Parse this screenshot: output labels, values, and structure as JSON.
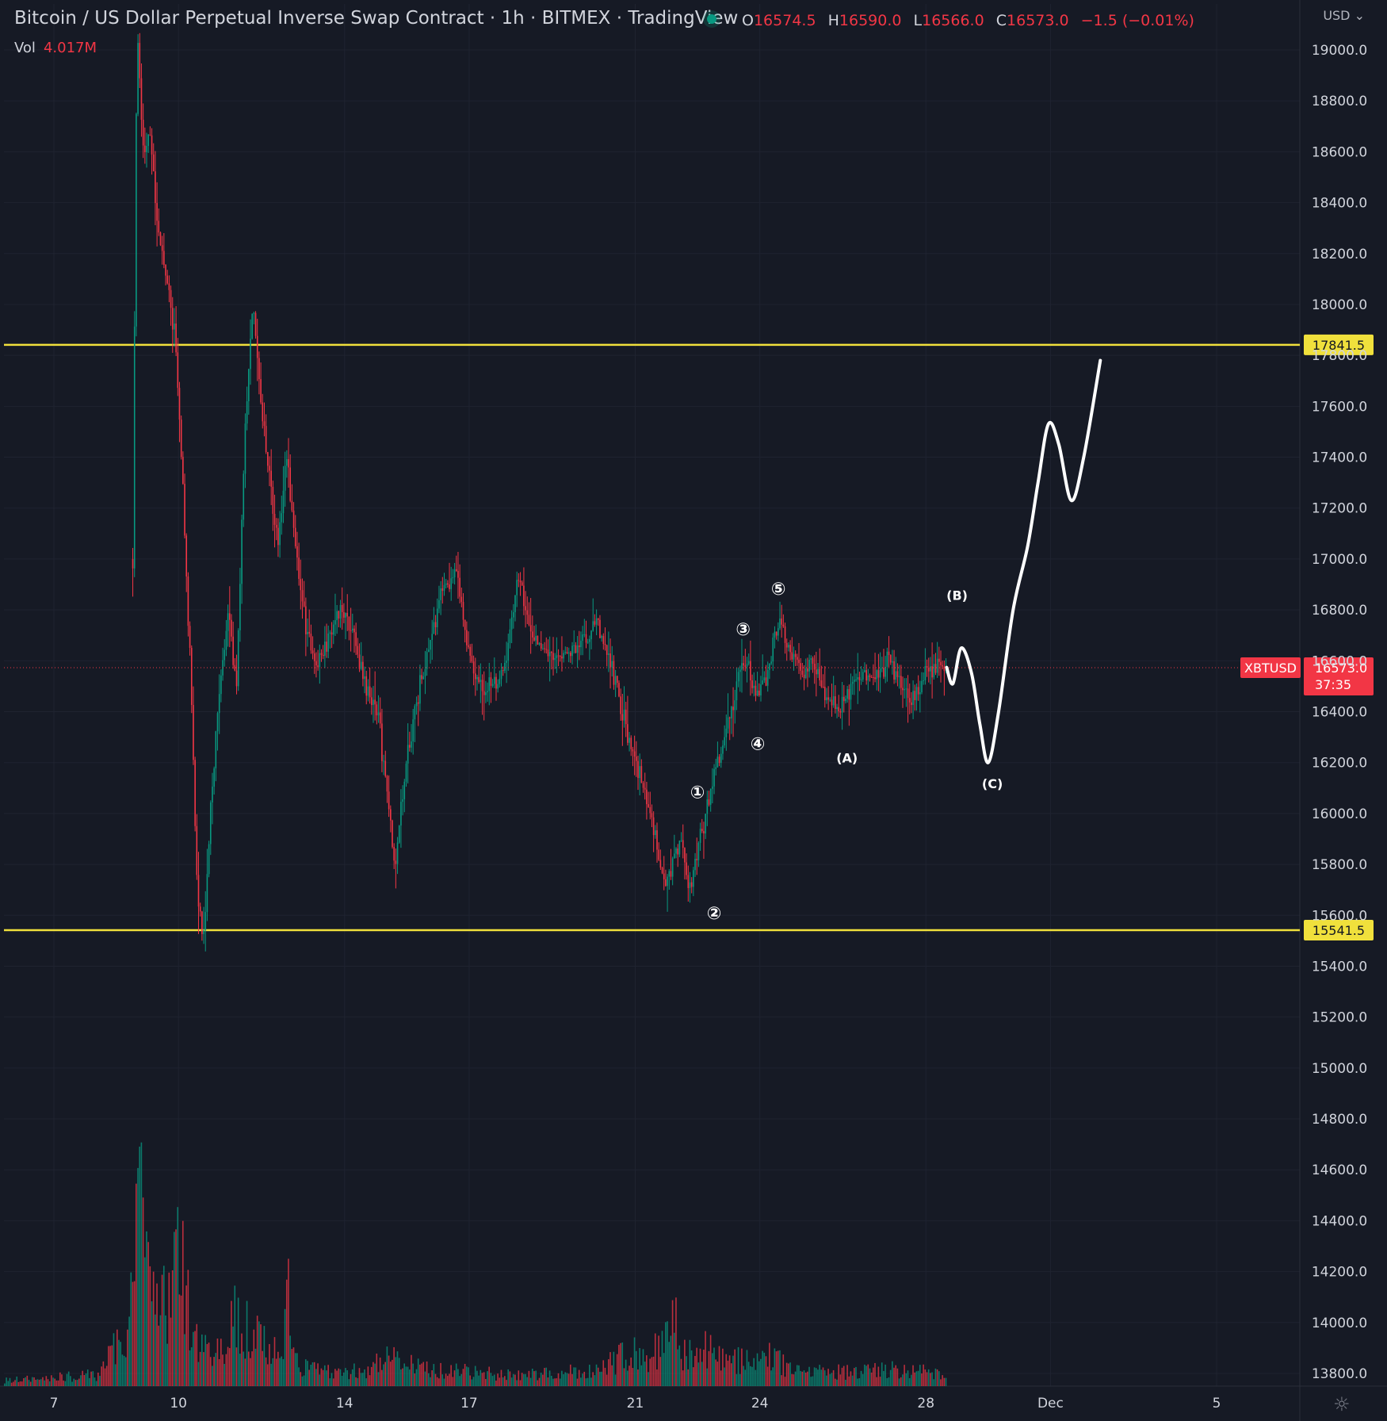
{
  "header": {
    "title": "Bitcoin / US Dollar Perpetual Inverse Swap Contract · 1h · BITMEX · TradingView",
    "ohlc": [
      {
        "key": "O",
        "value": "16574.5"
      },
      {
        "key": "H",
        "value": "16590.0"
      },
      {
        "key": "L",
        "value": "16566.0"
      },
      {
        "key": "C",
        "value": "16573.0"
      }
    ],
    "change": "−1.5 (−0.01%)",
    "volume_label": "Vol",
    "volume_value": "4.017M",
    "currency": "USD",
    "currency_chevron_icon": "chevron-down-icon",
    "settings_icon": "gear-icon"
  },
  "colors": {
    "background": "#161a25",
    "up": "#089981",
    "down": "#f23645",
    "level_line": "#f0e03c",
    "projection": "#ffffff"
  },
  "chart_data": {
    "type": "candlestick",
    "symbol": "XBTUSD",
    "last_price": "16573.0",
    "countdown": "37:35",
    "y_ticks": [
      19000,
      18800,
      18600,
      18400,
      18200,
      18000,
      17800,
      17600,
      17400,
      17200,
      17000,
      16800,
      16600,
      16400,
      16200,
      16000,
      15800,
      15600,
      15400,
      15200,
      15000,
      14800,
      14600,
      14400,
      14200,
      14000,
      13800
    ],
    "ylim": [
      13740,
      19160
    ],
    "x_ticks": [
      {
        "label": "7",
        "day": 7
      },
      {
        "label": "10",
        "day": 10
      },
      {
        "label": "14",
        "day": 14
      },
      {
        "label": "17",
        "day": 17
      },
      {
        "label": "21",
        "day": 21
      },
      {
        "label": "24",
        "day": 24
      },
      {
        "label": "28",
        "day": 28
      },
      {
        "label": "Dec",
        "day": 31
      },
      {
        "label": "5",
        "day": 35
      }
    ],
    "xlim": [
      5.8,
      37.9
    ],
    "horizontal_levels": [
      17841.5,
      15541.5
    ],
    "price_path": [
      [
        8.9,
        17000
      ],
      [
        9.0,
        19100
      ],
      [
        9.15,
        18600
      ],
      [
        9.3,
        18700
      ],
      [
        9.5,
        18300
      ],
      [
        9.7,
        18100
      ],
      [
        9.9,
        17900
      ],
      [
        10.1,
        17300
      ],
      [
        10.3,
        16500
      ],
      [
        10.45,
        15700
      ],
      [
        10.6,
        15480
      ],
      [
        10.8,
        16100
      ],
      [
        11.0,
        16500
      ],
      [
        11.2,
        16800
      ],
      [
        11.4,
        16500
      ],
      [
        11.6,
        17500
      ],
      [
        11.8,
        18000
      ],
      [
        12.0,
        17600
      ],
      [
        12.2,
        17300
      ],
      [
        12.4,
        17050
      ],
      [
        12.6,
        17400
      ],
      [
        12.8,
        17100
      ],
      [
        13.0,
        16800
      ],
      [
        13.3,
        16550
      ],
      [
        13.6,
        16700
      ],
      [
        13.9,
        16800
      ],
      [
        14.2,
        16700
      ],
      [
        14.5,
        16500
      ],
      [
        14.8,
        16400
      ],
      [
        15.0,
        16100
      ],
      [
        15.2,
        15800
      ],
      [
        15.5,
        16200
      ],
      [
        15.8,
        16500
      ],
      [
        16.1,
        16700
      ],
      [
        16.4,
        16900
      ],
      [
        16.7,
        16950
      ],
      [
        17.0,
        16600
      ],
      [
        17.3,
        16500
      ],
      [
        17.6,
        16500
      ],
      [
        17.9,
        16600
      ],
      [
        18.2,
        16950
      ],
      [
        18.5,
        16700
      ],
      [
        18.8,
        16650
      ],
      [
        19.1,
        16600
      ],
      [
        19.5,
        16650
      ],
      [
        19.8,
        16700
      ],
      [
        20.1,
        16750
      ],
      [
        20.4,
        16600
      ],
      [
        20.7,
        16400
      ],
      [
        21.0,
        16200
      ],
      [
        21.3,
        16050
      ],
      [
        21.5,
        15900
      ],
      [
        21.7,
        15700
      ],
      [
        21.9,
        15800
      ],
      [
        22.1,
        15900
      ],
      [
        22.3,
        15700
      ],
      [
        22.5,
        15850
      ],
      [
        22.7,
        16000
      ],
      [
        22.9,
        16150
      ],
      [
        23.1,
        16250
      ],
      [
        23.3,
        16400
      ],
      [
        23.5,
        16550
      ],
      [
        23.7,
        16600
      ],
      [
        23.9,
        16450
      ],
      [
        24.1,
        16500
      ],
      [
        24.3,
        16650
      ],
      [
        24.5,
        16750
      ],
      [
        24.7,
        16650
      ],
      [
        25.0,
        16550
      ],
      [
        25.3,
        16600
      ],
      [
        25.6,
        16450
      ],
      [
        25.9,
        16400
      ],
      [
        26.2,
        16500
      ],
      [
        26.5,
        16550
      ],
      [
        26.8,
        16550
      ],
      [
        27.1,
        16600
      ],
      [
        27.4,
        16500
      ],
      [
        27.7,
        16450
      ],
      [
        28.0,
        16550
      ],
      [
        28.3,
        16580
      ],
      [
        28.5,
        16574
      ]
    ],
    "projection_path": [
      [
        28.5,
        16574
      ],
      [
        28.65,
        16510
      ],
      [
        28.85,
        16650
      ],
      [
        29.1,
        16550
      ],
      [
        29.3,
        16350
      ],
      [
        29.5,
        16200
      ],
      [
        29.75,
        16400
      ],
      [
        30.1,
        16800
      ],
      [
        30.45,
        17050
      ],
      [
        30.7,
        17300
      ],
      [
        30.95,
        17530
      ],
      [
        31.2,
        17450
      ],
      [
        31.5,
        17230
      ],
      [
        31.8,
        17400
      ],
      [
        32.2,
        17780
      ]
    ],
    "wave_labels": [
      {
        "label": "①",
        "day": 22.5,
        "price": 16060
      },
      {
        "label": "②",
        "day": 22.9,
        "price": 15585
      },
      {
        "label": "③",
        "day": 23.6,
        "price": 16700
      },
      {
        "label": "④",
        "day": 23.95,
        "price": 16250
      },
      {
        "label": "⑤",
        "day": 24.45,
        "price": 16860
      },
      {
        "label": "(A)",
        "day": 26.1,
        "price": 16200
      },
      {
        "label": "(B)",
        "day": 28.75,
        "price": 16840
      },
      {
        "label": "(C)",
        "day": 29.6,
        "price": 16100
      }
    ],
    "volume_profile": [
      [
        5.8,
        0.02
      ],
      [
        8.0,
        0.04
      ],
      [
        8.8,
        0.2
      ],
      [
        9.0,
        1.0
      ],
      [
        9.1,
        0.6
      ],
      [
        9.3,
        0.3
      ],
      [
        9.5,
        0.25
      ],
      [
        9.7,
        0.3
      ],
      [
        10.0,
        0.45
      ],
      [
        10.2,
        0.3
      ],
      [
        10.5,
        0.12
      ],
      [
        11.0,
        0.12
      ],
      [
        11.4,
        0.25
      ],
      [
        11.8,
        0.18
      ],
      [
        12.2,
        0.12
      ],
      [
        12.5,
        0.1
      ],
      [
        12.6,
        0.6
      ],
      [
        12.8,
        0.08
      ],
      [
        13.5,
        0.05
      ],
      [
        14.5,
        0.06
      ],
      [
        15.0,
        0.1
      ],
      [
        15.5,
        0.08
      ],
      [
        16.0,
        0.06
      ],
      [
        17.0,
        0.05
      ],
      [
        18.0,
        0.04
      ],
      [
        19.0,
        0.05
      ],
      [
        20.0,
        0.05
      ],
      [
        20.8,
        0.12
      ],
      [
        21.3,
        0.1
      ],
      [
        21.6,
        0.15
      ],
      [
        21.8,
        0.32
      ],
      [
        22.1,
        0.12
      ],
      [
        22.6,
        0.14
      ],
      [
        23.0,
        0.1
      ],
      [
        23.3,
        0.1
      ],
      [
        23.8,
        0.08
      ],
      [
        24.2,
        0.12
      ],
      [
        24.5,
        0.08
      ],
      [
        25.0,
        0.06
      ],
      [
        26.0,
        0.05
      ],
      [
        27.0,
        0.06
      ],
      [
        28.0,
        0.05
      ],
      [
        28.5,
        0.03
      ]
    ]
  }
}
